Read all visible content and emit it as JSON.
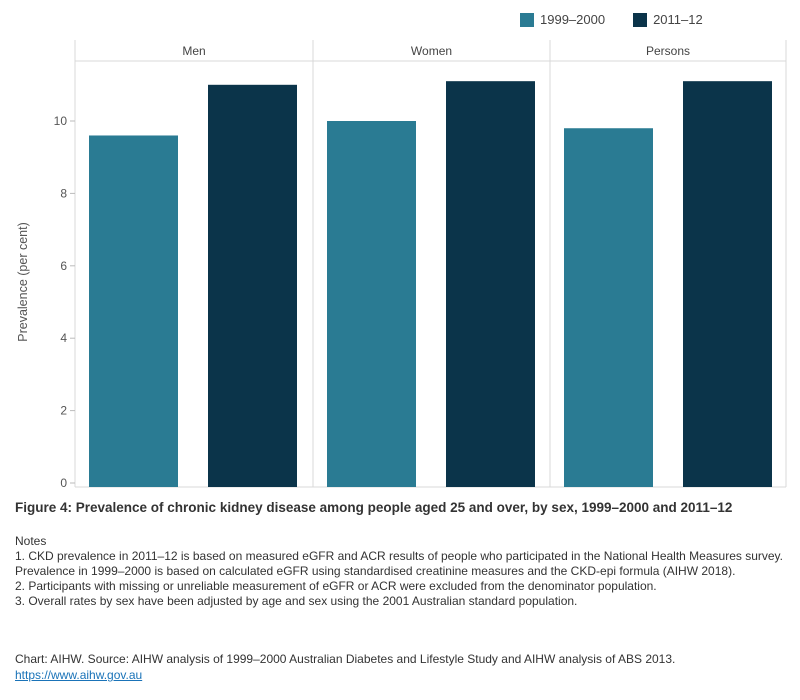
{
  "legend": {
    "items": [
      {
        "label": "1999–2000",
        "color": "#2a7b93"
      },
      {
        "label": "2011–12",
        "color": "#0b344a"
      }
    ]
  },
  "chart_data": {
    "type": "bar",
    "facets": [
      "Men",
      "Women",
      "Persons"
    ],
    "series": [
      {
        "name": "1999–2000",
        "color": "#2a7b93",
        "values": [
          9.6,
          10.0,
          9.8
        ]
      },
      {
        "name": "2011–12",
        "color": "#0b344a",
        "values": [
          11.0,
          11.1,
          11.1
        ]
      }
    ],
    "ylabel": "Prevalence (per cent)",
    "ylim": [
      0,
      11.7
    ],
    "yticks": [
      0,
      2,
      4,
      6,
      8,
      10
    ],
    "title": "Figure 4: Prevalence of chronic kidney disease among people aged 25 and over, by sex, 1999–2000 and 2011–12"
  },
  "notes": {
    "heading": "Notes",
    "items": [
      "1. CKD prevalence in 2011–12 is based on measured eGFR and ACR results of people who participated in the National Health Measures survey. Prevalence in 1999–2000 is based on calculated eGFR using standardised creatinine measures and the CKD-epi formula (AIHW 2018).",
      "2. Participants with missing or unreliable measurement of eGFR or ACR were excluded from the denominator population.",
      "3. Overall rates by sex have been adjusted by age and sex using the 2001 Australian standard population."
    ]
  },
  "source": {
    "text": "Chart: AIHW. Source: AIHW analysis of 1999–2000 Australian Diabetes and Lifestyle Study and AIHW analysis of ABS 2013.",
    "link": "https://www.aihw.gov.au"
  }
}
